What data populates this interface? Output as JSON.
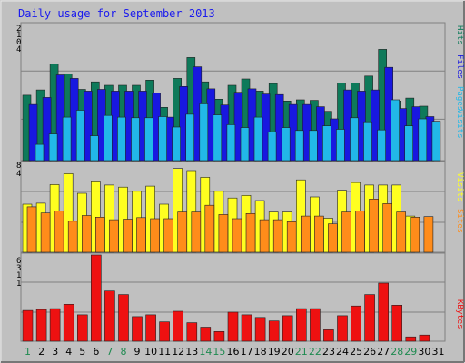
{
  "chart_data": {
    "type": "bar",
    "title": "Daily usage for September 2013",
    "categories": [
      "1",
      "2",
      "3",
      "4",
      "5",
      "6",
      "7",
      "8",
      "9",
      "10",
      "11",
      "12",
      "13",
      "14",
      "15",
      "16",
      "17",
      "18",
      "19",
      "20",
      "21",
      "22",
      "23",
      "24",
      "25",
      "26",
      "27",
      "28",
      "29",
      "30",
      "31"
    ],
    "weekend_days": [
      "1",
      "7",
      "8",
      "14",
      "15",
      "21",
      "22",
      "28",
      "29"
    ],
    "panels": [
      {
        "id": "top",
        "y_tick_labels": [
          "2",
          "1",
          "0",
          "4"
        ],
        "ylim": [
          0,
          235
        ],
        "right_labels": [
          "Hits",
          "Files",
          "Pages",
          "Visits"
        ],
        "series": [
          {
            "key": "hits",
            "color": "#0e7a5a",
            "values": [
              113,
              122,
              167,
              150,
              123,
              136,
              130,
              130,
              130,
              139,
              92,
              142,
              178,
              136,
              106,
              130,
              141,
              120,
              133,
              103,
              105,
              104,
              85,
              134,
              134,
              146,
              192,
              103,
              108,
              94,
              0
            ]
          },
          {
            "key": "files",
            "color": "#1818e0",
            "values": [
              97,
              109,
              148,
              142,
              120,
              123,
              120,
              120,
              120,
              117,
              75,
              128,
              162,
              124,
              96,
              118,
              124,
              115,
              114,
              97,
              97,
              93,
              72,
              122,
              120,
              122,
              161,
              90,
              93,
              76,
              0
            ]
          },
          {
            "key": "pages",
            "color": "#22b8e8",
            "values": [
              28,
              46,
              75,
              87,
              43,
              78,
              75,
              74,
              74,
              76,
              58,
              80,
              98,
              79,
              62,
              57,
              75,
              49,
              57,
              52,
              52,
              60,
              54,
              74,
              67,
              53,
              105,
              60,
              72,
              68,
              0
            ]
          }
        ]
      },
      {
        "id": "middle",
        "y_tick_labels": [
          "8",
          "4"
        ],
        "ylim": [
          0,
          172
        ],
        "right_labels": [
          "Visits",
          "Sites"
        ],
        "series": [
          {
            "key": "visits",
            "color": "#ffff20",
            "values": [
              93,
              95,
              131,
              152,
              114,
              138,
              130,
              126,
              118,
              128,
              93,
              162,
              158,
              145,
              118,
              105,
              110,
              100,
              78,
              78,
              140,
              107,
              66,
              120,
              135,
              130,
              130,
              130,
              70,
              0,
              0
            ]
          },
          {
            "key": "sites",
            "color": "#ff8c1a",
            "values": [
              88,
              76,
              80,
              60,
              71,
              68,
              63,
              64,
              67,
              65,
              65,
              78,
              78,
              91,
              73,
              65,
              75,
              63,
              63,
              59,
              70,
              70,
              55,
              78,
              80,
              103,
              94,
              78,
              68,
              69,
              0
            ]
          }
        ]
      },
      {
        "id": "bottom",
        "y_tick_labels": [
          "6",
          "3",
          "1",
          "1"
        ],
        "ylim": [
          0,
          98
        ],
        "right_labels": [
          "KBytes"
        ],
        "series": [
          {
            "key": "kbytes",
            "color": "#ee1111",
            "values": [
              35,
              36,
              37,
              42,
              30,
              98,
              57,
              53,
              28,
              30,
              22,
              34,
              21,
              16,
              11,
              33,
              30,
              27,
              23,
              29,
              37,
              37,
              13,
              29,
              40,
              53,
              66,
              41,
              5,
              7,
              0
            ]
          }
        ]
      }
    ]
  }
}
